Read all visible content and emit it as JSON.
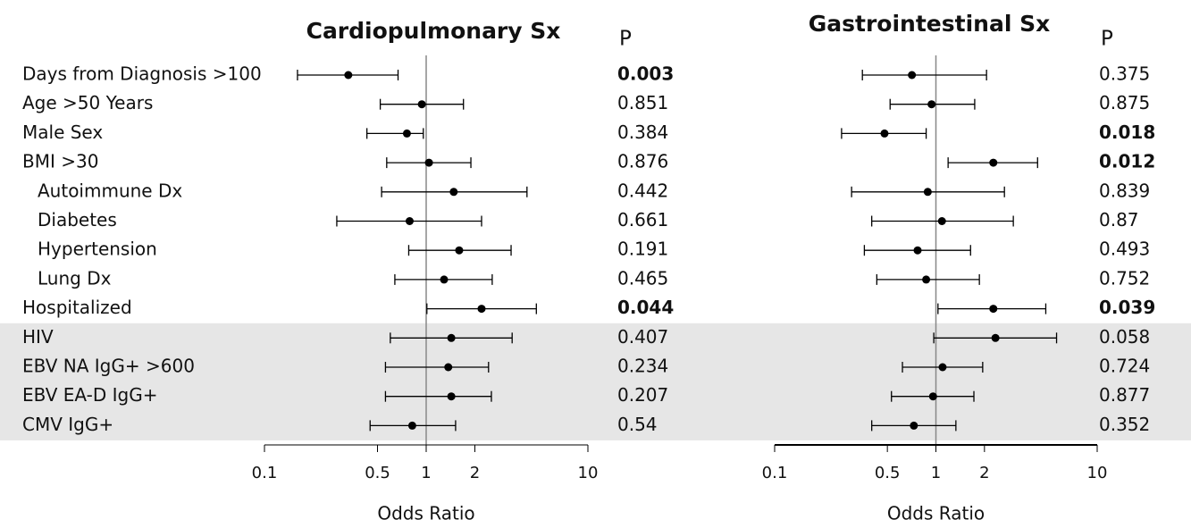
{
  "chart_data": {
    "type": "forest",
    "categories": [
      "Days from Diagnosis >100",
      "Age >50 Years",
      "Male Sex",
      "BMI >30",
      "Autoimmune Dx",
      "Diabetes",
      "Hypertension",
      "Lung Dx",
      "Hospitalized",
      "HIV",
      "EBV NA IgG+ >600",
      "EBV EA-D IgG+",
      "CMV IgG+"
    ],
    "indented_rows": [
      4,
      5,
      6,
      7
    ],
    "shaded_rows": [
      9,
      10,
      11,
      12
    ],
    "shade_color": "#e6e6e6",
    "panels": [
      {
        "title": "Cardiopulmonary Sx",
        "p_header": "P",
        "p_values": [
          0.003,
          0.851,
          0.384,
          0.876,
          0.442,
          0.661,
          0.191,
          0.465,
          0.044,
          0.407,
          0.234,
          0.207,
          0.54
        ],
        "bold_rows": [
          0,
          8
        ],
        "values": [
          0.33,
          0.94,
          0.76,
          1.04,
          1.48,
          0.79,
          1.6,
          1.29,
          2.2,
          1.43,
          1.37,
          1.43,
          0.82
        ],
        "lower": [
          0.16,
          0.52,
          0.43,
          0.57,
          0.53,
          0.28,
          0.78,
          0.64,
          1.01,
          0.6,
          0.56,
          0.56,
          0.45
        ],
        "upper": [
          0.67,
          1.7,
          0.96,
          1.89,
          4.2,
          2.2,
          3.35,
          2.56,
          4.8,
          3.4,
          2.43,
          2.53,
          1.52
        ],
        "color": "#000000",
        "log_x": true,
        "reference": 1,
        "xlim": [
          0.1,
          10
        ],
        "xticks": [
          0.1,
          0.5,
          1,
          2,
          10
        ],
        "xlabel": "Odds Ratio"
      },
      {
        "title": "Gastrointestinal Sx",
        "p_header": "P",
        "p_values": [
          0.375,
          0.875,
          0.018,
          0.012,
          0.839,
          0.87,
          0.493,
          0.752,
          0.039,
          0.058,
          0.724,
          0.877,
          0.352
        ],
        "bold_rows": [
          2,
          3,
          8
        ],
        "values": [
          0.71,
          0.94,
          0.48,
          2.27,
          0.89,
          1.09,
          0.77,
          0.87,
          2.27,
          2.34,
          1.1,
          0.96,
          0.73
        ],
        "lower": [
          0.35,
          0.52,
          0.26,
          1.19,
          0.3,
          0.4,
          0.36,
          0.43,
          1.03,
          0.97,
          0.62,
          0.53,
          0.4
        ],
        "upper": [
          2.06,
          1.74,
          0.87,
          4.27,
          2.66,
          3.02,
          1.64,
          1.86,
          4.8,
          5.6,
          1.95,
          1.72,
          1.33
        ],
        "color": "#000000",
        "log_x": true,
        "reference": 1,
        "xlim": [
          0.1,
          10
        ],
        "xticks": [
          0.1,
          0.5,
          1,
          2,
          10
        ],
        "xlabel": "Odds Ratio"
      }
    ]
  }
}
